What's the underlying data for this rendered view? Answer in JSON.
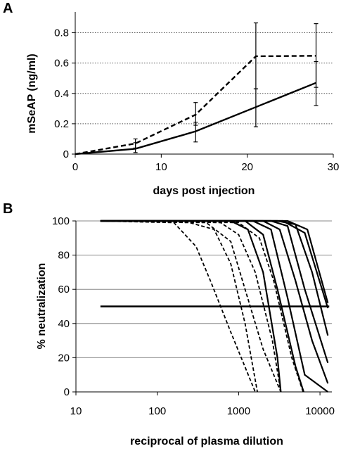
{
  "chart_data": [
    {
      "panel": "A",
      "type": "line",
      "title": "",
      "xlabel": "days post injection",
      "ylabel": "mSeAP (ng/ml)",
      "xlim": [
        0,
        30
      ],
      "ylim": [
        0,
        0.9
      ],
      "xticks": [
        0,
        10,
        20,
        30
      ],
      "yticks": [
        0,
        0.2,
        0.4,
        0.6,
        0.8
      ],
      "xtick_labels": [
        "0",
        "10",
        "20",
        "30"
      ],
      "ytick_labels": [
        "0",
        "0.2",
        "0.4",
        "0.6",
        "0.8"
      ],
      "grid": "horizontal dotted",
      "colors": {
        "line": "#000000",
        "grid": "#555555"
      },
      "series": [
        {
          "style": "dashed",
          "x": [
            0,
            7,
            14,
            21,
            28
          ],
          "y": [
            0,
            0.07,
            0.26,
            0.645,
            0.648
          ],
          "err_low": [
            0,
            0.04,
            0.19,
            0.43,
            0.44
          ],
          "err_high": [
            0,
            0.1,
            0.34,
            0.865,
            0.86
          ]
        },
        {
          "style": "solid",
          "x": [
            0,
            7,
            14,
            21,
            28
          ],
          "y": [
            0,
            0.035,
            0.15,
            0.31,
            0.47
          ],
          "err_low": [
            0,
            0.01,
            0.08,
            0.18,
            0.32
          ],
          "err_high": [
            0,
            0.075,
            0.21,
            0.43,
            0.61
          ]
        }
      ]
    },
    {
      "panel": "B",
      "type": "line",
      "title": "",
      "xlabel": "reciprocal of plasma dilution",
      "ylabel": "% neutralization",
      "xscale": "log",
      "xlim": [
        10,
        14000
      ],
      "ylim": [
        0,
        100
      ],
      "xticks": [
        10,
        100,
        1000,
        10000
      ],
      "yticks": [
        0,
        20,
        40,
        60,
        80,
        100
      ],
      "xtick_labels": [
        "10",
        "100",
        "1000",
        "10000"
      ],
      "ytick_labels": [
        "0",
        "20",
        "40",
        "60",
        "80",
        "100"
      ],
      "grid": "horizontal solid",
      "colors": {
        "line": "#000000",
        "grid": "#888888"
      },
      "reference_line": {
        "y": 50,
        "x_from": 20,
        "x_to": 13000
      },
      "series": [
        {
          "style": "dashed",
          "x": [
            20,
            160,
            300,
            450,
            800,
            1600
          ],
          "y": [
            100,
            99,
            85,
            65,
            35,
            0
          ]
        },
        {
          "style": "dashed",
          "x": [
            20,
            250,
            500,
            800,
            1200,
            1700
          ],
          "y": [
            100,
            99,
            95,
            75,
            40,
            0
          ]
        },
        {
          "style": "dashed",
          "x": [
            20,
            400,
            800,
            1200,
            2000,
            3300
          ],
          "y": [
            100,
            99,
            88,
            60,
            25,
            0
          ]
        },
        {
          "style": "dashed",
          "x": [
            20,
            600,
            1000,
            1600,
            2600,
            3300
          ],
          "y": [
            100,
            99,
            92,
            70,
            30,
            0
          ]
        },
        {
          "style": "dashed",
          "x": [
            20,
            1000,
            1800,
            2700,
            4500,
            6200
          ],
          "y": [
            100,
            99,
            90,
            65,
            20,
            0
          ]
        },
        {
          "style": "solid",
          "x": [
            20,
            800,
            1300,
            2000,
            3000,
            3300
          ],
          "y": [
            100,
            100,
            95,
            70,
            20,
            0
          ]
        },
        {
          "style": "solid",
          "x": [
            20,
            1200,
            2000,
            3000,
            5000,
            6300
          ],
          "y": [
            100,
            100,
            92,
            60,
            15,
            0
          ]
        },
        {
          "style": "solid",
          "x": [
            20,
            1500,
            2500,
            4000,
            6500,
            12500
          ],
          "y": [
            100,
            100,
            95,
            55,
            10,
            0
          ]
        },
        {
          "style": "solid",
          "x": [
            20,
            2000,
            3200,
            5000,
            8000,
            12500
          ],
          "y": [
            100,
            100,
            95,
            65,
            30,
            5
          ]
        },
        {
          "style": "solid",
          "x": [
            20,
            2500,
            4000,
            6500,
            12500
          ],
          "y": [
            100,
            100,
            97,
            60,
            17
          ]
        },
        {
          "style": "solid",
          "x": [
            20,
            3000,
            5000,
            8000,
            12500
          ],
          "y": [
            100,
            100,
            98,
            70,
            33
          ]
        },
        {
          "style": "solid",
          "x": [
            20,
            3500,
            6500,
            12500
          ],
          "y": [
            100,
            100,
            93,
            49
          ]
        },
        {
          "style": "solid",
          "x": [
            20,
            4000,
            7000,
            12500
          ],
          "y": [
            100,
            100,
            95,
            52
          ]
        }
      ]
    }
  ]
}
